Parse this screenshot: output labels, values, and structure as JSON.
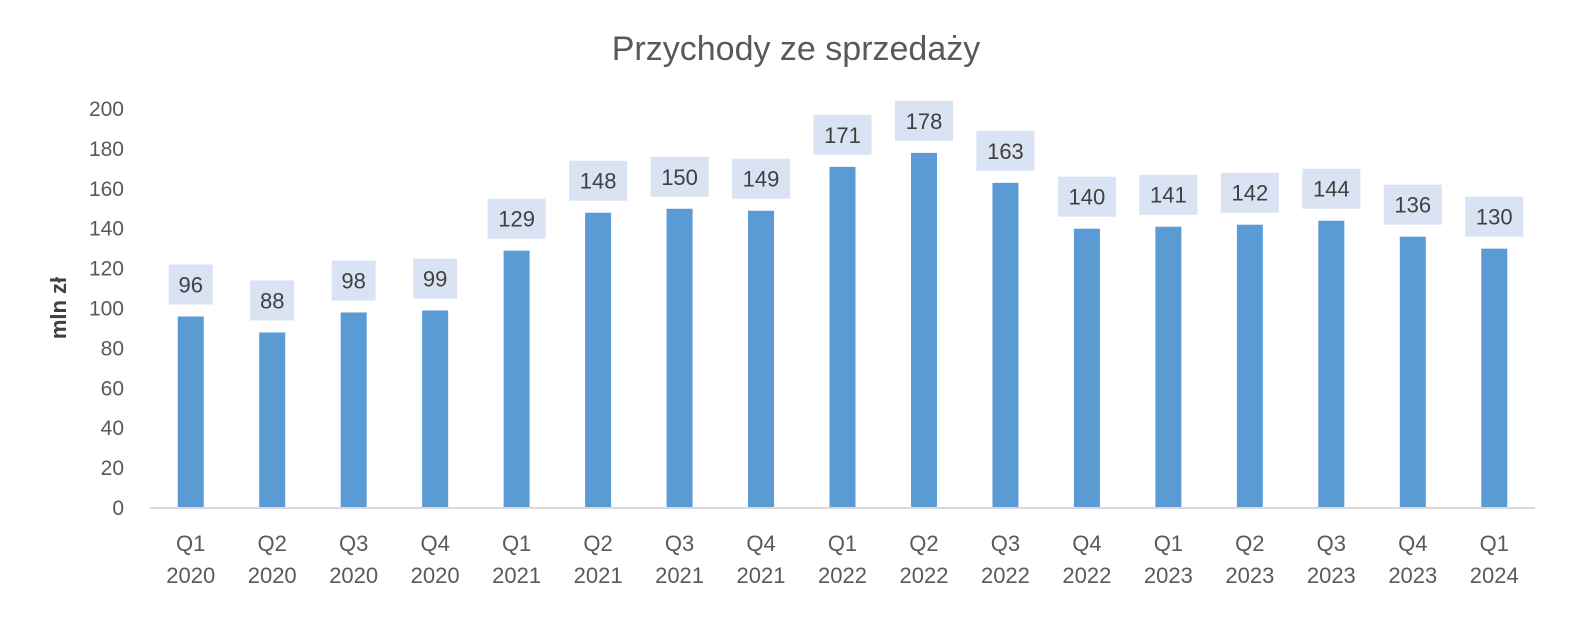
{
  "chart_data": {
    "type": "bar",
    "title": "Przychody ze sprzedaży",
    "ylabel": "mln zł",
    "xlabel": "",
    "ylim": [
      0,
      200
    ],
    "yticks": [
      0,
      20,
      40,
      60,
      80,
      100,
      120,
      140,
      160,
      180,
      200
    ],
    "grid": false,
    "legend": "none",
    "bar_color": "#5B9BD5",
    "data_label_bg": "#DAE3F3",
    "categories": [
      [
        "Q1",
        "2020"
      ],
      [
        "Q2",
        "2020"
      ],
      [
        "Q3",
        "2020"
      ],
      [
        "Q4",
        "2020"
      ],
      [
        "Q1",
        "2021"
      ],
      [
        "Q2",
        "2021"
      ],
      [
        "Q3",
        "2021"
      ],
      [
        "Q4",
        "2021"
      ],
      [
        "Q1",
        "2022"
      ],
      [
        "Q2",
        "2022"
      ],
      [
        "Q3",
        "2022"
      ],
      [
        "Q4",
        "2022"
      ],
      [
        "Q1",
        "2023"
      ],
      [
        "Q2",
        "2023"
      ],
      [
        "Q3",
        "2023"
      ],
      [
        "Q4",
        "2023"
      ],
      [
        "Q1",
        "2024"
      ]
    ],
    "values": [
      96,
      88,
      98,
      99,
      129,
      148,
      150,
      149,
      171,
      178,
      163,
      140,
      141,
      142,
      144,
      136,
      130
    ]
  }
}
